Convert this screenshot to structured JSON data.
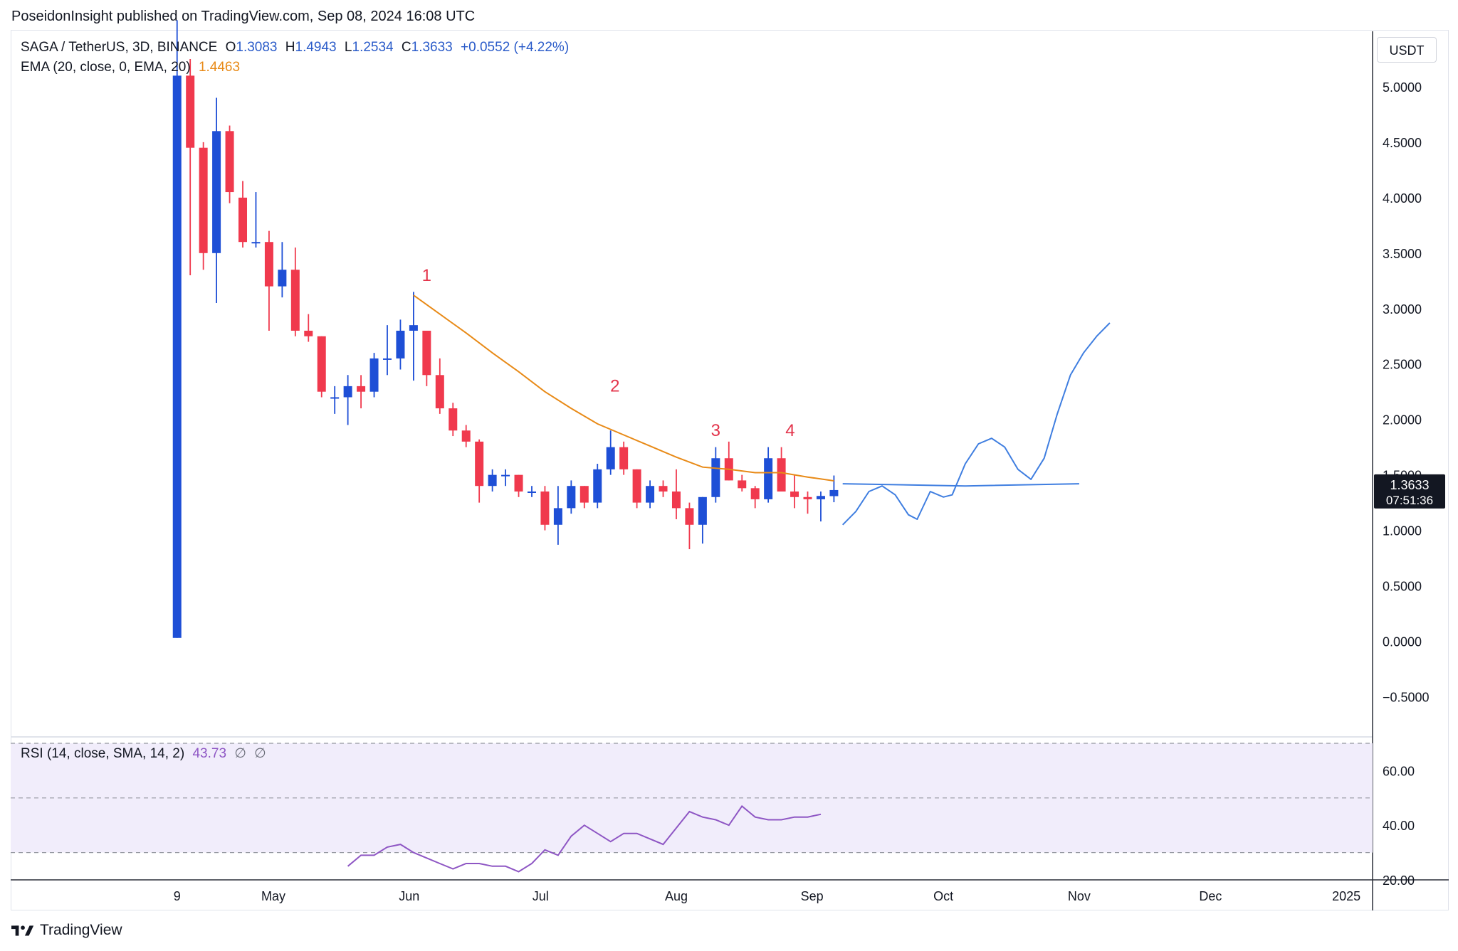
{
  "header": {
    "published": "PoseidonInsight published on TradingView.com, Sep 08, 2024 16:08 UTC"
  },
  "legend": {
    "symbol": "SAGA / TetherUS, 3D, BINANCE",
    "open_label": "O",
    "open": "1.3083",
    "high_label": "H",
    "high": "1.4943",
    "low_label": "L",
    "low": "1.2534",
    "close_label": "C",
    "close": "1.3633",
    "change": "+0.0552 (+4.22%)",
    "ema_label": "EMA (20, close, 0, EMA, 20)",
    "ema_value": "1.4463",
    "rsi_label": "RSI (14, close, SMA, 14, 2)",
    "rsi_value": "43.73",
    "rsi_na1": "∅",
    "rsi_na2": "∅"
  },
  "currency": "USDT",
  "price_tag": {
    "value": "1.3633",
    "countdown": "07:51:36"
  },
  "brand": {
    "name": "TradingView"
  },
  "colors": {
    "up": "#1e4fd6",
    "down": "#f0394d",
    "ema": "#e88a17",
    "rsi": "#8e56c4",
    "projection": "#3f7ee0",
    "rsi_band": "#f1edfb",
    "label_red": "#e3334a"
  },
  "chart_data": [
    {
      "type": "candlestick",
      "title": "SAGA / TetherUS, 3D, BINANCE",
      "y_ticks": [
        "5.0000",
        "4.5000",
        "4.0000",
        "3.5000",
        "3.0000",
        "2.5000",
        "2.0000",
        "1.5000",
        "1.0000",
        "0.5000",
        "0.0000",
        "−0.5000"
      ],
      "y_tick_values": [
        5,
        4.5,
        4,
        3.5,
        3,
        2.5,
        2,
        1.5,
        1,
        0.5,
        0,
        -0.5
      ],
      "ylim": [
        -0.85,
        5.5
      ],
      "x_ticks": [
        {
          "label": "9",
          "date": "2024-04-09"
        },
        {
          "label": "May",
          "date": "2024-05-01"
        },
        {
          "label": "Jun",
          "date": "2024-06-01"
        },
        {
          "label": "Jul",
          "date": "2024-07-01"
        },
        {
          "label": "Aug",
          "date": "2024-08-01"
        },
        {
          "label": "Sep",
          "date": "2024-09-01"
        },
        {
          "label": "Oct",
          "date": "2024-10-01"
        },
        {
          "label": "Nov",
          "date": "2024-11-01"
        },
        {
          "label": "Dec",
          "date": "2024-12-01"
        },
        {
          "label": "2025",
          "date": "2025-01-01"
        }
      ],
      "xlim": [
        "2024-03-02",
        "2025-01-07"
      ],
      "candles": [
        {
          "d": "2024-04-09",
          "o": 0.03,
          "h": 5.6,
          "l": 0.03,
          "c": 5.1
        },
        {
          "d": "2024-04-12",
          "o": 5.1,
          "h": 5.25,
          "l": 3.3,
          "c": 4.45
        },
        {
          "d": "2024-04-15",
          "o": 4.45,
          "h": 4.5,
          "l": 3.35,
          "c": 3.5
        },
        {
          "d": "2024-04-18",
          "o": 3.5,
          "h": 4.9,
          "l": 3.05,
          "c": 4.6
        },
        {
          "d": "2024-04-21",
          "o": 4.6,
          "h": 4.65,
          "l": 3.95,
          "c": 4.05
        },
        {
          "d": "2024-04-24",
          "o": 4.0,
          "h": 4.15,
          "l": 3.55,
          "c": 3.6
        },
        {
          "d": "2024-04-27",
          "o": 3.6,
          "h": 4.05,
          "l": 3.55,
          "c": 3.6
        },
        {
          "d": "2024-04-30",
          "o": 3.6,
          "h": 3.7,
          "l": 2.8,
          "c": 3.2
        },
        {
          "d": "2024-05-03",
          "o": 3.2,
          "h": 3.6,
          "l": 3.1,
          "c": 3.35
        },
        {
          "d": "2024-05-06",
          "o": 3.35,
          "h": 3.55,
          "l": 2.75,
          "c": 2.8
        },
        {
          "d": "2024-05-09",
          "o": 2.8,
          "h": 2.95,
          "l": 2.7,
          "c": 2.75
        },
        {
          "d": "2024-05-12",
          "o": 2.75,
          "h": 2.75,
          "l": 2.2,
          "c": 2.25
        },
        {
          "d": "2024-05-15",
          "o": 2.2,
          "h": 2.3,
          "l": 2.05,
          "c": 2.2
        },
        {
          "d": "2024-05-18",
          "o": 2.2,
          "h": 2.4,
          "l": 1.95,
          "c": 2.3
        },
        {
          "d": "2024-05-21",
          "o": 2.3,
          "h": 2.4,
          "l": 2.1,
          "c": 2.25
        },
        {
          "d": "2024-05-24",
          "o": 2.25,
          "h": 2.6,
          "l": 2.2,
          "c": 2.55
        },
        {
          "d": "2024-05-27",
          "o": 2.55,
          "h": 2.85,
          "l": 2.4,
          "c": 2.55
        },
        {
          "d": "2024-05-30",
          "o": 2.55,
          "h": 2.9,
          "l": 2.45,
          "c": 2.8
        },
        {
          "d": "2024-06-02",
          "o": 2.8,
          "h": 3.15,
          "l": 2.35,
          "c": 2.85
        },
        {
          "d": "2024-06-05",
          "o": 2.8,
          "h": 2.8,
          "l": 2.3,
          "c": 2.4
        },
        {
          "d": "2024-06-08",
          "o": 2.4,
          "h": 2.55,
          "l": 2.05,
          "c": 2.1
        },
        {
          "d": "2024-06-11",
          "o": 2.1,
          "h": 2.15,
          "l": 1.85,
          "c": 1.9
        },
        {
          "d": "2024-06-14",
          "o": 1.9,
          "h": 1.95,
          "l": 1.75,
          "c": 1.8
        },
        {
          "d": "2024-06-17",
          "o": 1.8,
          "h": 1.82,
          "l": 1.25,
          "c": 1.4
        },
        {
          "d": "2024-06-20",
          "o": 1.4,
          "h": 1.55,
          "l": 1.35,
          "c": 1.5
        },
        {
          "d": "2024-06-23",
          "o": 1.5,
          "h": 1.55,
          "l": 1.4,
          "c": 1.5
        },
        {
          "d": "2024-06-26",
          "o": 1.5,
          "h": 1.5,
          "l": 1.3,
          "c": 1.35
        },
        {
          "d": "2024-06-29",
          "o": 1.35,
          "h": 1.4,
          "l": 1.3,
          "c": 1.35
        },
        {
          "d": "2024-07-02",
          "o": 1.35,
          "h": 1.4,
          "l": 1.0,
          "c": 1.05
        },
        {
          "d": "2024-07-05",
          "o": 1.05,
          "h": 1.4,
          "l": 0.87,
          "c": 1.2
        },
        {
          "d": "2024-07-08",
          "o": 1.2,
          "h": 1.45,
          "l": 1.15,
          "c": 1.4
        },
        {
          "d": "2024-07-11",
          "o": 1.4,
          "h": 1.4,
          "l": 1.2,
          "c": 1.25
        },
        {
          "d": "2024-07-14",
          "o": 1.25,
          "h": 1.6,
          "l": 1.2,
          "c": 1.55
        },
        {
          "d": "2024-07-17",
          "o": 1.55,
          "h": 1.9,
          "l": 1.5,
          "c": 1.75
        },
        {
          "d": "2024-07-20",
          "o": 1.75,
          "h": 1.8,
          "l": 1.5,
          "c": 1.55
        },
        {
          "d": "2024-07-23",
          "o": 1.55,
          "h": 1.55,
          "l": 1.2,
          "c": 1.25
        },
        {
          "d": "2024-07-26",
          "o": 1.25,
          "h": 1.45,
          "l": 1.2,
          "c": 1.4
        },
        {
          "d": "2024-07-29",
          "o": 1.4,
          "h": 1.45,
          "l": 1.3,
          "c": 1.35
        },
        {
          "d": "2024-08-01",
          "o": 1.35,
          "h": 1.55,
          "l": 1.1,
          "c": 1.2
        },
        {
          "d": "2024-08-04",
          "o": 1.2,
          "h": 1.25,
          "l": 0.83,
          "c": 1.05
        },
        {
          "d": "2024-08-07",
          "o": 1.05,
          "h": 1.3,
          "l": 0.88,
          "c": 1.3
        },
        {
          "d": "2024-08-10",
          "o": 1.3,
          "h": 1.75,
          "l": 1.25,
          "c": 1.65
        },
        {
          "d": "2024-08-13",
          "o": 1.65,
          "h": 1.8,
          "l": 1.45,
          "c": 1.45
        },
        {
          "d": "2024-08-16",
          "o": 1.45,
          "h": 1.5,
          "l": 1.35,
          "c": 1.38
        },
        {
          "d": "2024-08-19",
          "o": 1.38,
          "h": 1.4,
          "l": 1.2,
          "c": 1.28
        },
        {
          "d": "2024-08-22",
          "o": 1.28,
          "h": 1.75,
          "l": 1.25,
          "c": 1.65
        },
        {
          "d": "2024-08-25",
          "o": 1.65,
          "h": 1.75,
          "l": 1.35,
          "c": 1.35
        },
        {
          "d": "2024-08-28",
          "o": 1.35,
          "h": 1.5,
          "l": 1.2,
          "c": 1.3
        },
        {
          "d": "2024-08-31",
          "o": 1.3,
          "h": 1.35,
          "l": 1.15,
          "c": 1.28
        },
        {
          "d": "2024-09-03",
          "o": 1.28,
          "h": 1.35,
          "l": 1.08,
          "c": 1.31
        },
        {
          "d": "2024-09-06",
          "o": 1.3083,
          "h": 1.4943,
          "l": 1.2534,
          "c": 1.3633
        }
      ],
      "ema": {
        "name": "EMA (20, close, 0, EMA, 20)",
        "points": [
          [
            "2024-06-02",
            3.12
          ],
          [
            "2024-06-08",
            2.95
          ],
          [
            "2024-06-14",
            2.78
          ],
          [
            "2024-06-20",
            2.6
          ],
          [
            "2024-06-26",
            2.43
          ],
          [
            "2024-07-02",
            2.25
          ],
          [
            "2024-07-08",
            2.1
          ],
          [
            "2024-07-14",
            1.96
          ],
          [
            "2024-07-20",
            1.86
          ],
          [
            "2024-07-26",
            1.76
          ],
          [
            "2024-08-01",
            1.66
          ],
          [
            "2024-08-07",
            1.57
          ],
          [
            "2024-08-13",
            1.55
          ],
          [
            "2024-08-19",
            1.52
          ],
          [
            "2024-08-25",
            1.52
          ],
          [
            "2024-08-31",
            1.48
          ],
          [
            "2024-09-06",
            1.4463
          ]
        ]
      },
      "projection_path": [
        [
          "2024-09-08",
          1.05
        ],
        [
          "2024-09-11",
          1.17
        ],
        [
          "2024-09-14",
          1.35
        ],
        [
          "2024-09-17",
          1.4
        ],
        [
          "2024-09-20",
          1.32
        ],
        [
          "2024-09-23",
          1.14
        ],
        [
          "2024-09-25",
          1.1
        ],
        [
          "2024-09-28",
          1.35
        ],
        [
          "2024-10-01",
          1.3
        ],
        [
          "2024-10-03",
          1.32
        ],
        [
          "2024-10-06",
          1.6
        ],
        [
          "2024-10-09",
          1.78
        ],
        [
          "2024-10-12",
          1.83
        ],
        [
          "2024-10-15",
          1.75
        ],
        [
          "2024-10-18",
          1.55
        ],
        [
          "2024-10-21",
          1.46
        ],
        [
          "2024-10-24",
          1.65
        ],
        [
          "2024-10-27",
          2.05
        ],
        [
          "2024-10-30",
          2.4
        ],
        [
          "2024-11-02",
          2.6
        ],
        [
          "2024-11-05",
          2.75
        ],
        [
          "2024-11-08",
          2.87
        ]
      ],
      "support_line": [
        [
          "2024-09-08",
          1.42
        ],
        [
          "2024-10-06",
          1.4
        ],
        [
          "2024-11-01",
          1.42
        ]
      ],
      "wave_labels": [
        {
          "text": "1",
          "d": "2024-06-05",
          "y": 3.25
        },
        {
          "text": "2",
          "d": "2024-07-18",
          "y": 2.25
        },
        {
          "text": "3",
          "d": "2024-08-10",
          "y": 1.85
        },
        {
          "text": "4",
          "d": "2024-08-27",
          "y": 1.85
        }
      ]
    },
    {
      "type": "line",
      "title": "RSI (14, close, SMA, 14, 2)",
      "y_ticks": [
        "60.00",
        "40.00",
        "20.00"
      ],
      "y_tick_values": [
        60,
        40,
        20
      ],
      "ylim": [
        20,
        70
      ],
      "bands": [
        70,
        50,
        30
      ],
      "points": [
        [
          "2024-05-18",
          25
        ],
        [
          "2024-05-21",
          29
        ],
        [
          "2024-05-24",
          29
        ],
        [
          "2024-05-27",
          32
        ],
        [
          "2024-05-30",
          33
        ],
        [
          "2024-06-02",
          30
        ],
        [
          "2024-06-05",
          28
        ],
        [
          "2024-06-08",
          26
        ],
        [
          "2024-06-11",
          24
        ],
        [
          "2024-06-14",
          26
        ],
        [
          "2024-06-17",
          26
        ],
        [
          "2024-06-20",
          25
        ],
        [
          "2024-06-23",
          25
        ],
        [
          "2024-06-26",
          23
        ],
        [
          "2024-06-29",
          26
        ],
        [
          "2024-07-02",
          31
        ],
        [
          "2024-07-05",
          29
        ],
        [
          "2024-07-08",
          36
        ],
        [
          "2024-07-11",
          40
        ],
        [
          "2024-07-14",
          37
        ],
        [
          "2024-07-17",
          34
        ],
        [
          "2024-07-20",
          37
        ],
        [
          "2024-07-23",
          37
        ],
        [
          "2024-07-26",
          35
        ],
        [
          "2024-07-29",
          33
        ],
        [
          "2024-08-01",
          39
        ],
        [
          "2024-08-04",
          45
        ],
        [
          "2024-08-07",
          43
        ],
        [
          "2024-08-10",
          42
        ],
        [
          "2024-08-13",
          40
        ],
        [
          "2024-08-16",
          47
        ],
        [
          "2024-08-19",
          43
        ],
        [
          "2024-08-22",
          42
        ],
        [
          "2024-08-25",
          42
        ],
        [
          "2024-08-28",
          43
        ],
        [
          "2024-08-31",
          43
        ],
        [
          "2024-09-03",
          44
        ]
      ]
    }
  ]
}
